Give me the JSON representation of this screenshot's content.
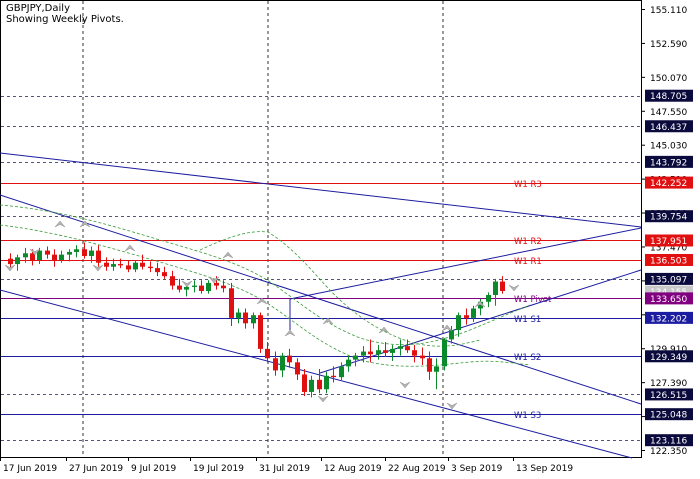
{
  "header": {
    "symbol_line": "GBPJPY,Daily",
    "subtitle": "Showing Weekly Pivots."
  },
  "colors": {
    "bull": "#0a8a2a",
    "bear": "#e01010",
    "trend": "#1c1ca0",
    "resistance": "#e01010",
    "support": "#1c1ca0",
    "pivot": "#800080",
    "grid": "#000000",
    "envelope": "#3a9a3a"
  },
  "chart_data": {
    "type": "candlestick",
    "title": "GBPJPY,Daily",
    "ylim": [
      121.0,
      155.5
    ],
    "y_ticks": [
      "155.110",
      "152.590",
      "150.070",
      "147.550",
      "145.030",
      "142.510",
      "139.990",
      "137.470",
      "134.950",
      "132.430",
      "129.910",
      "127.390",
      "124.870",
      "122.350"
    ],
    "x_ticks": [
      "17 Jun 2019",
      "27 Jun 2019",
      "9 Jul 2019",
      "19 Jul 2019",
      "31 Jul 2019",
      "12 Aug 2019",
      "22 Aug 2019",
      "3 Sep 2019",
      "13 Sep 2019"
    ],
    "pivots": [
      {
        "label": "W1 R3",
        "value": 142.252,
        "kind": "resistance"
      },
      {
        "label": "W1 R2",
        "value": 137.951,
        "kind": "resistance"
      },
      {
        "label": "W1 R1",
        "value": 136.503,
        "kind": "resistance"
      },
      {
        "label": "W1 Pivot",
        "value": 133.65,
        "kind": "pivot"
      },
      {
        "label": "W1 S1",
        "value": 132.202,
        "kind": "support"
      },
      {
        "label": "W1 S2",
        "value": 129.349,
        "kind": "support"
      },
      {
        "label": "W1 S3",
        "value": 125.048,
        "kind": "support"
      }
    ],
    "price_tags": [
      {
        "value": 148.705,
        "style": "level"
      },
      {
        "value": 146.437,
        "style": "level"
      },
      {
        "value": 143.792,
        "style": "level"
      },
      {
        "value": 142.252,
        "style": "resistance"
      },
      {
        "value": 139.754,
        "style": "level"
      },
      {
        "value": 137.951,
        "style": "resistance"
      },
      {
        "value": 136.503,
        "style": "resistance"
      },
      {
        "value": 135.097,
        "style": "level"
      },
      {
        "value": 134.155,
        "style": "current"
      },
      {
        "value": 133.65,
        "style": "pivot"
      },
      {
        "value": 132.202,
        "style": "support"
      },
      {
        "value": 129.349,
        "style": "level"
      },
      {
        "value": 126.515,
        "style": "level"
      },
      {
        "value": 125.048,
        "style": "level"
      },
      {
        "value": 123.116,
        "style": "level"
      }
    ],
    "dashed_levels": [
      148.705,
      146.437,
      143.792,
      139.754,
      135.097,
      126.515,
      123.116
    ],
    "candles": [
      [
        136.6,
        137.0,
        135.9,
        136.2
      ],
      [
        136.2,
        136.9,
        135.7,
        136.7
      ],
      [
        136.7,
        137.4,
        136.3,
        137.0
      ],
      [
        137.0,
        137.3,
        136.1,
        136.5
      ],
      [
        136.5,
        137.4,
        136.2,
        137.2
      ],
      [
        137.2,
        137.5,
        136.6,
        136.9
      ],
      [
        136.9,
        137.3,
        136.0,
        136.5
      ],
      [
        136.5,
        137.2,
        136.3,
        136.9
      ],
      [
        136.9,
        137.3,
        136.4,
        137.1
      ],
      [
        137.1,
        137.6,
        136.7,
        137.3
      ],
      [
        137.3,
        137.8,
        136.6,
        136.8
      ],
      [
        136.8,
        137.5,
        136.3,
        137.2
      ],
      [
        137.2,
        137.6,
        136.0,
        136.3
      ],
      [
        136.3,
        136.7,
        135.7,
        136.0
      ],
      [
        136.0,
        136.6,
        135.7,
        136.2
      ],
      [
        136.2,
        136.6,
        135.9,
        136.1
      ],
      [
        136.1,
        136.5,
        135.6,
        135.8
      ],
      [
        135.8,
        136.5,
        135.6,
        136.3
      ],
      [
        136.3,
        136.9,
        135.8,
        136.0
      ],
      [
        136.0,
        136.4,
        135.6,
        135.9
      ],
      [
        135.9,
        136.3,
        135.3,
        135.6
      ],
      [
        135.6,
        136.0,
        135.1,
        135.3
      ],
      [
        135.3,
        135.7,
        134.3,
        134.6
      ],
      [
        134.6,
        135.1,
        134.1,
        134.3
      ],
      [
        134.3,
        134.7,
        133.8,
        134.5
      ],
      [
        134.5,
        135.0,
        134.1,
        134.6
      ],
      [
        134.6,
        135.0,
        134.0,
        134.2
      ],
      [
        134.2,
        135.0,
        134.0,
        134.8
      ],
      [
        134.8,
        135.3,
        134.3,
        134.6
      ],
      [
        134.6,
        135.0,
        134.1,
        134.4
      ],
      [
        134.4,
        134.8,
        131.6,
        132.2
      ],
      [
        132.2,
        132.9,
        131.8,
        132.6
      ],
      [
        132.6,
        132.9,
        131.4,
        131.8
      ],
      [
        131.8,
        132.6,
        131.4,
        132.4
      ],
      [
        132.4,
        132.6,
        129.6,
        129.9
      ],
      [
        129.9,
        130.4,
        128.9,
        129.2
      ],
      [
        129.2,
        129.7,
        127.9,
        128.3
      ],
      [
        128.3,
        129.6,
        127.8,
        129.4
      ],
      [
        129.4,
        129.9,
        128.5,
        128.9
      ],
      [
        128.9,
        129.2,
        127.6,
        128.0
      ],
      [
        128.0,
        128.4,
        126.4,
        126.7
      ],
      [
        126.7,
        127.9,
        126.3,
        127.6
      ],
      [
        127.6,
        128.4,
        126.6,
        126.9
      ],
      [
        126.9,
        128.2,
        126.6,
        127.9
      ],
      [
        127.9,
        128.6,
        127.4,
        127.8
      ],
      [
        127.8,
        128.9,
        127.6,
        128.6
      ],
      [
        128.6,
        129.4,
        128.2,
        129.1
      ],
      [
        129.1,
        129.6,
        128.6,
        129.4
      ],
      [
        129.4,
        130.1,
        128.9,
        129.7
      ],
      [
        129.7,
        130.6,
        128.9,
        129.5
      ],
      [
        129.5,
        130.2,
        129.1,
        129.8
      ],
      [
        129.8,
        130.4,
        129.3,
        129.6
      ],
      [
        129.6,
        130.2,
        129.0,
        129.9
      ],
      [
        129.9,
        130.6,
        129.4,
        130.1
      ],
      [
        130.1,
        130.6,
        129.6,
        129.8
      ],
      [
        129.8,
        130.2,
        128.9,
        129.4
      ],
      [
        129.4,
        130.0,
        128.7,
        129.2
      ],
      [
        129.2,
        129.7,
        127.6,
        128.2
      ],
      [
        128.2,
        129.2,
        126.9,
        128.6
      ],
      [
        128.6,
        130.7,
        128.3,
        130.6
      ],
      [
        130.6,
        131.6,
        130.3,
        131.3
      ],
      [
        131.3,
        132.6,
        130.8,
        132.4
      ],
      [
        132.4,
        132.9,
        131.7,
        132.2
      ],
      [
        132.2,
        133.1,
        131.9,
        132.9
      ],
      [
        132.9,
        133.6,
        132.4,
        133.4
      ],
      [
        133.4,
        134.1,
        133.0,
        133.9
      ],
      [
        133.9,
        135.1,
        133.1,
        134.9
      ],
      [
        134.9,
        135.3,
        134.0,
        134.2
      ]
    ]
  }
}
